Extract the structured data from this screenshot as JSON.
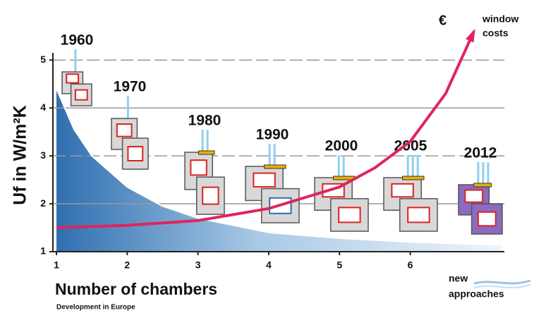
{
  "chart_data": {
    "type": "line",
    "y_label": "Uf in W/m²K",
    "x_label": "Number of chambers",
    "subtitle": "Development in Europe",
    "annotations": [
      "€",
      "window",
      "costs",
      "new",
      "approaches"
    ],
    "years": [
      "1960",
      "1970",
      "1980",
      "1990",
      "2000",
      "2005",
      "2012"
    ],
    "xlim": [
      0.95,
      7.33
    ],
    "ylim": [
      1,
      5.15
    ],
    "xticks": [
      1,
      2,
      3,
      4,
      5,
      6
    ],
    "yticks": [
      1,
      2,
      3,
      4,
      5
    ],
    "grid": true,
    "series": [
      {
        "x": [
          1,
          1.25,
          1.5,
          2,
          2.5,
          3,
          4,
          5,
          6,
          7.3
        ],
        "values": [
          4.4,
          3.55,
          3.0,
          2.35,
          1.95,
          1.7,
          1.4,
          1.28,
          1.2,
          1.14
        ],
        "color": "#2f6fb0"
      },
      {
        "x": [
          1,
          2,
          3,
          4,
          5,
          5.5,
          6,
          6.5,
          6.9
        ],
        "values": [
          1.5,
          1.55,
          1.65,
          1.9,
          2.35,
          2.75,
          3.3,
          4.3,
          5.6
        ],
        "color": "#e0245e"
      }
    ]
  }
}
